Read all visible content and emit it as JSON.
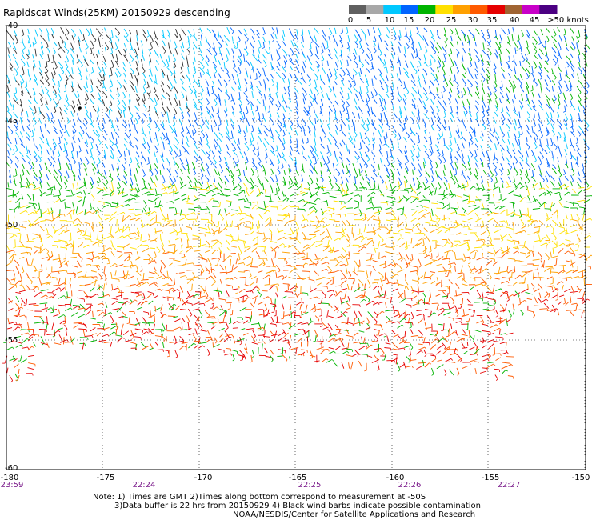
{
  "title": "Rapidscat Winds(25KM) 20150929 descending",
  "legend": {
    "labels": [
      "0",
      "5",
      "10",
      "15",
      "20",
      "25",
      "30",
      "35",
      "40",
      "45",
      ">50 knots"
    ],
    "colors": [
      "#606060",
      "#a8a8a8",
      "#00c8ff",
      "#0064ff",
      "#00b400",
      "#ffe000",
      "#ffa000",
      "#ff5a00",
      "#e60000",
      "#a06432",
      "#c800c8",
      "#4b0082"
    ]
  },
  "lat_labels": [
    "-40",
    "-45",
    "-50",
    "-55",
    "-60"
  ],
  "lon_labels": [
    "-180",
    "-175",
    "-170",
    "-165",
    "-160",
    "-155",
    "-150"
  ],
  "time_labels": [
    "23:59",
    "22:24",
    "22:25",
    "22:26",
    "22:27"
  ],
  "notes": [
    "Note: 1) Times are GMT 2)Times along bottom correspond to measurement at -50S",
    "3)Data buffer is 22 hrs from 20150929 4) Black wind barbs indicate possible contamination",
    "NOAA/NESDIS/Center for Satellite Applications and Research"
  ]
}
